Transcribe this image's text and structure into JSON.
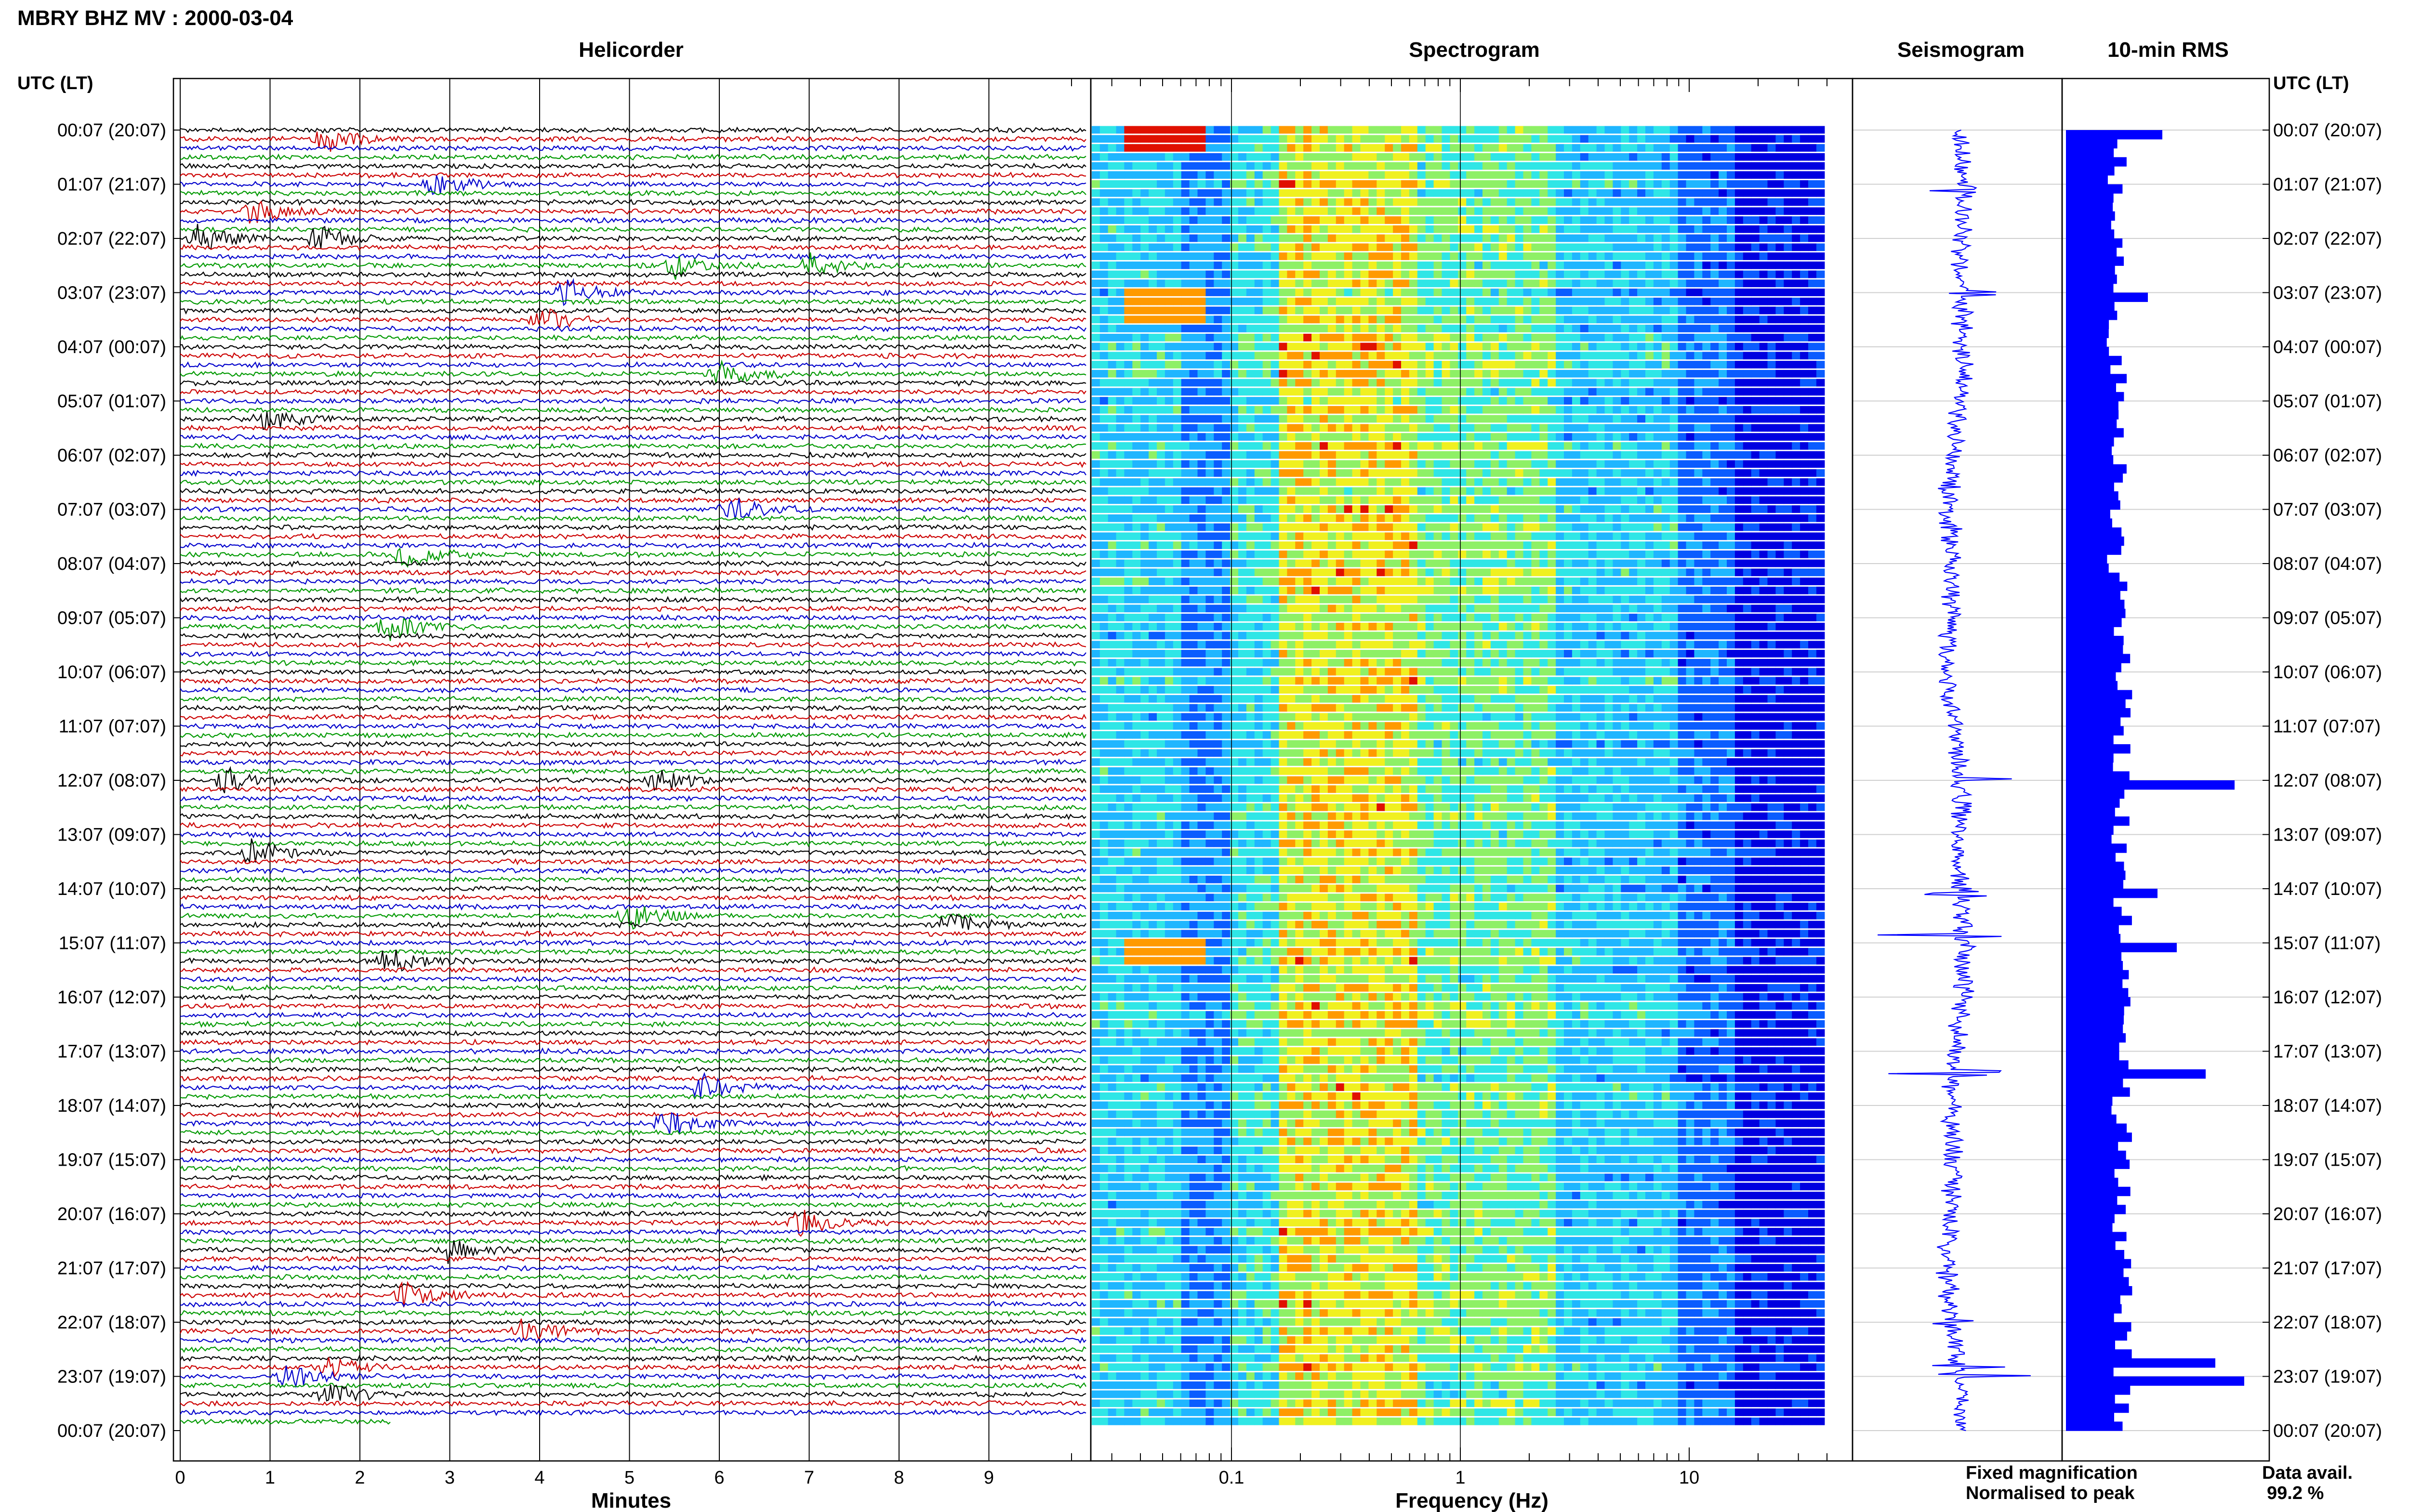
{
  "header": {
    "title": "MBRY BHZ MV : 2000-03-04",
    "utc_label_left": "UTC (LT)",
    "utc_label_right": "UTC (LT)"
  },
  "time_labels": [
    "00:07 (20:07)",
    "01:07 (21:07)",
    "02:07 (22:07)",
    "03:07 (23:07)",
    "04:07 (00:07)",
    "05:07 (01:07)",
    "06:07 (02:07)",
    "07:07 (03:07)",
    "08:07 (04:07)",
    "09:07 (05:07)",
    "10:07 (06:07)",
    "11:07 (07:07)",
    "12:07 (08:07)",
    "13:07 (09:07)",
    "14:07 (10:07)",
    "15:07 (11:07)",
    "16:07 (12:07)",
    "17:07 (13:07)",
    "18:07 (14:07)",
    "19:07 (15:07)",
    "20:07 (16:07)",
    "21:07 (17:07)",
    "22:07 (18:07)",
    "23:07 (19:07)",
    "00:07 (20:07)"
  ],
  "panels": {
    "helicorder": {
      "title": "Helicorder",
      "xlabel": "Minutes",
      "ticks": [
        "0",
        "1",
        "2",
        "3",
        "4",
        "5",
        "6",
        "7",
        "8",
        "9"
      ],
      "colors": [
        "#000000",
        "#cc0000",
        "#0000cc",
        "#009900"
      ]
    },
    "spectrogram": {
      "title": "Spectrogram",
      "xlabel": "Frequency (Hz)",
      "ticks": [
        "0.1",
        "1",
        "10"
      ],
      "scale": "log"
    },
    "seismogram": {
      "title": "Seismogram",
      "color": "#0000ff"
    },
    "rms": {
      "title": "10-min RMS",
      "color": "#0000ff"
    }
  },
  "legend": {
    "fixed": "Fixed magnification",
    "fixed_color": "#0000ff",
    "normalised": "Normalised to peak",
    "normalised_color": "#ff0000"
  },
  "data_avail": {
    "label": "Data avail.",
    "value": "99.2 %"
  },
  "chart_data": [
    {
      "type": "line",
      "title": "Helicorder",
      "xlabel": "Minutes",
      "xlim": [
        0,
        10
      ],
      "rows_per_hour": 6,
      "events": [
        {
          "row": 1,
          "minute": 1.6
        },
        {
          "row": 6,
          "minute": 2.8
        },
        {
          "row": 9,
          "minute": 0.8
        },
        {
          "row": 12,
          "minute": 0.2
        },
        {
          "row": 12,
          "minute": 1.5
        },
        {
          "row": 15,
          "minute": 7.0
        },
        {
          "row": 15,
          "minute": 5.5
        },
        {
          "row": 18,
          "minute": 4.3
        },
        {
          "row": 21,
          "minute": 4.0
        },
        {
          "row": 27,
          "minute": 6.0
        },
        {
          "row": 32,
          "minute": 0.9
        },
        {
          "row": 42,
          "minute": 6.1
        },
        {
          "row": 47,
          "minute": 2.5
        },
        {
          "row": 55,
          "minute": 2.3
        },
        {
          "row": 72,
          "minute": 0.5
        },
        {
          "row": 72,
          "minute": 5.3
        },
        {
          "row": 80,
          "minute": 0.8
        },
        {
          "row": 87,
          "minute": 5.0
        },
        {
          "row": 88,
          "minute": 8.5
        },
        {
          "row": 92,
          "minute": 2.3
        },
        {
          "row": 106,
          "minute": 5.8
        },
        {
          "row": 110,
          "minute": 5.4
        },
        {
          "row": 121,
          "minute": 6.9
        },
        {
          "row": 124,
          "minute": 3.0
        },
        {
          "row": 129,
          "minute": 2.5
        },
        {
          "row": 133,
          "minute": 3.8
        },
        {
          "row": 137,
          "minute": 1.6
        },
        {
          "row": 138,
          "minute": 1.2
        },
        {
          "row": 140,
          "minute": 1.6
        }
      ]
    },
    {
      "type": "heatmap",
      "title": "Spectrogram",
      "xlabel": "Frequency (Hz)",
      "xscale": "log",
      "xlim": [
        0.02,
        40
      ]
    },
    {
      "type": "line",
      "title": "Seismogram",
      "spikes": [
        {
          "hour": 1.1,
          "amp": 0.3
        },
        {
          "hour": 3.0,
          "amp": 0.25
        },
        {
          "hour": 12.0,
          "amp": 1.0
        },
        {
          "hour": 14.1,
          "amp": 0.3
        },
        {
          "hour": 14.9,
          "amp": 0.6
        },
        {
          "hour": 17.4,
          "amp": 1.0
        },
        {
          "hour": 22.0,
          "amp": 0.7
        },
        {
          "hour": 22.8,
          "amp": 0.4
        },
        {
          "hour": 23.0,
          "amp": 0.6
        }
      ]
    },
    {
      "type": "bar",
      "title": "10-min RMS",
      "orientation": "horizontal",
      "bins_per_hour": 6,
      "hourly_peaks": [
        {
          "hour": 0.0,
          "value": 1.0
        },
        {
          "hour": 3.0,
          "value": 0.85
        },
        {
          "hour": 12.0,
          "value": 1.75
        },
        {
          "hour": 14.0,
          "value": 0.95
        },
        {
          "hour": 15.0,
          "value": 1.15
        },
        {
          "hour": 17.4,
          "value": 1.45
        },
        {
          "hour": 22.7,
          "value": 1.55
        },
        {
          "hour": 23.0,
          "value": 1.85
        }
      ]
    }
  ]
}
